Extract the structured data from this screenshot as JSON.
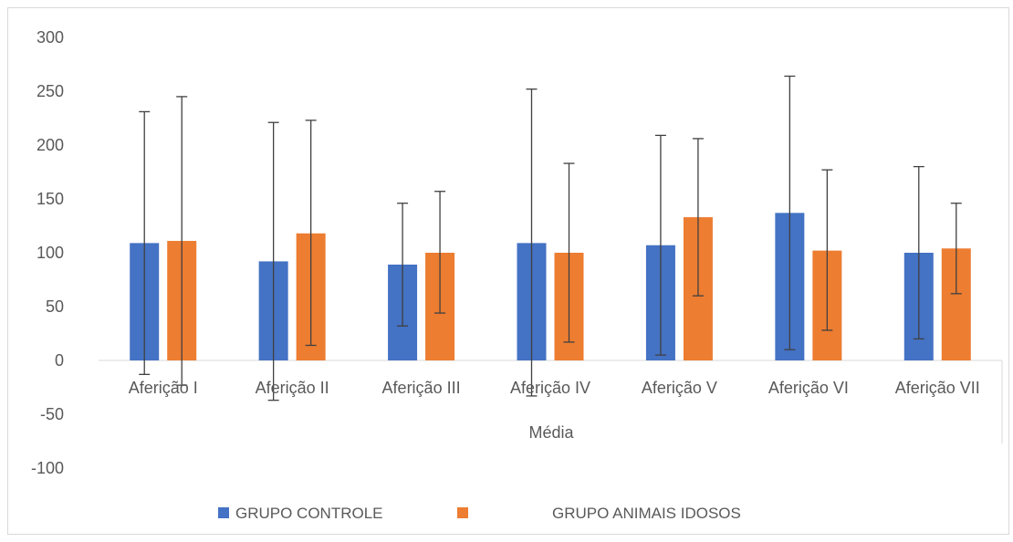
{
  "chart_data": {
    "type": "bar",
    "title": "",
    "xlabel": "Média",
    "ylabel": "",
    "ylim": [
      -100,
      300
    ],
    "ytick_step": 50,
    "yticks": [
      "300",
      "250",
      "200",
      "150",
      "100",
      "50",
      "0",
      "-50",
      "-100"
    ],
    "grid": false,
    "legend_position": "bottom",
    "categories": [
      "Aferição I",
      "Aferição II",
      "Aferição III",
      "Aferição IV",
      "Aferição V",
      "Aferição VI",
      "Aferição VII"
    ],
    "series": [
      {
        "name": "GRUPO CONTROLE",
        "color": "#4472C4",
        "values": [
          109,
          92,
          89,
          109,
          107,
          137,
          100
        ],
        "error_upper": [
          231,
          221,
          146,
          252,
          209,
          264,
          180
        ],
        "error_lower": [
          -13,
          -37,
          32,
          -33,
          5,
          10,
          20
        ]
      },
      {
        "name": "GRUPO ANIMAIS IDOSOS",
        "color": "#ED7D31",
        "values": [
          111,
          118,
          100,
          100,
          133,
          102,
          104
        ],
        "error_upper": [
          245,
          223,
          157,
          183,
          206,
          177,
          146
        ],
        "error_lower": [
          -23,
          14,
          44,
          17,
          60,
          28,
          62
        ]
      }
    ]
  }
}
